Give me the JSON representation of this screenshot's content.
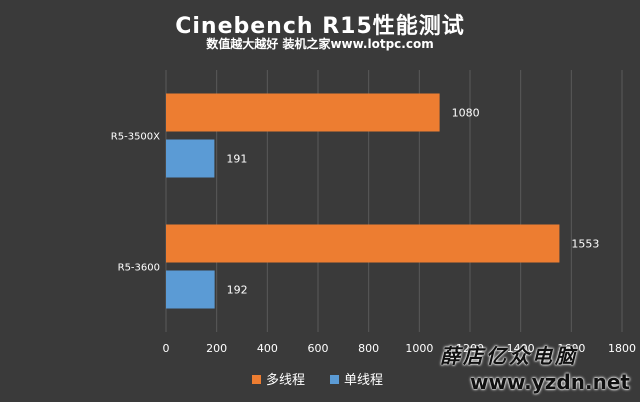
{
  "header": {
    "title": "Cinebench R15性能测试",
    "subtitle": "数值越大越好 装机之家www.lotpc.com"
  },
  "watermark": {
    "text": "薛店亿众电脑",
    "url": "www.yzdn.net"
  },
  "colors": {
    "background": "#3a3a3a",
    "multi_thread": "#ed7d31",
    "single_thread": "#5b9bd5",
    "grid": "#5a5a5a",
    "text": "#ffffff"
  },
  "chart_data": {
    "type": "bar",
    "orientation": "horizontal",
    "title": "Cinebench R15性能测试",
    "subtitle": "数值越大越好 装机之家www.lotpc.com",
    "categories": [
      "R5-3500X",
      "R5-3600"
    ],
    "series": [
      {
        "name": "多线程",
        "values": [
          1080,
          1553
        ]
      },
      {
        "name": "单线程",
        "values": [
          191,
          192
        ]
      }
    ],
    "xlim": [
      0,
      1800
    ],
    "xticks": [
      "0",
      "200",
      "400",
      "600",
      "800",
      "1000",
      "1200",
      "1400",
      "1600",
      "1800"
    ],
    "grid": true,
    "legend_position": "bottom"
  }
}
